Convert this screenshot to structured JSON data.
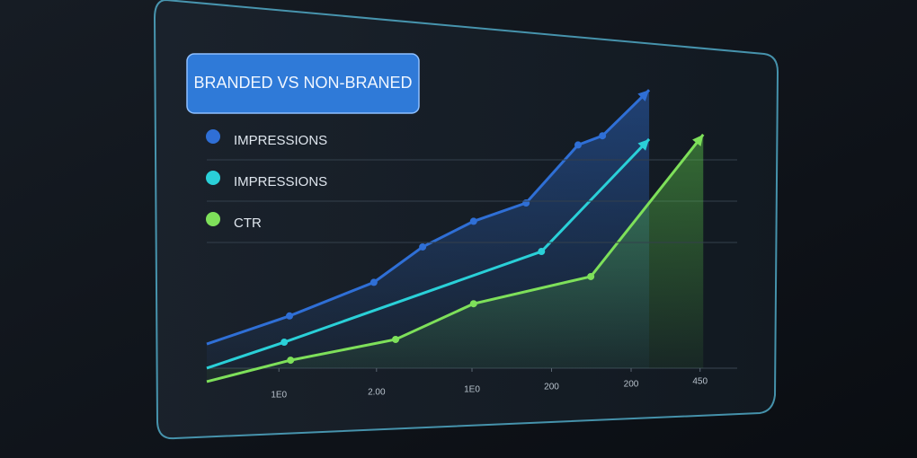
{
  "chart_data": {
    "type": "line",
    "title": "BRANDED VS NON-BRANED",
    "xlim": [
      0,
      100
    ],
    "ylim": [
      0,
      100
    ],
    "xticks": [
      {
        "value": 13.6,
        "label": "1E0"
      },
      {
        "value": 32,
        "label": "2.00"
      },
      {
        "value": 50,
        "label": "1E0"
      },
      {
        "value": 65,
        "label": "200"
      },
      {
        "value": 80,
        "label": "200"
      },
      {
        "value": 93,
        "label": "450"
      }
    ],
    "series": [
      {
        "name": "IMPRESSIONS",
        "color": "#2f6fd6",
        "x": [
          0,
          15.6,
          31.5,
          40.7,
          50.3,
          60.2,
          70,
          74.6,
          83.4
        ],
        "values": [
          13.8,
          23,
          34,
          45.6,
          54,
          60,
          79,
          82,
          97
        ]
      },
      {
        "name": "IMPRESSIONS",
        "color": "#2ad0d8",
        "x": [
          0,
          14.6,
          63.1,
          83.4
        ],
        "values": [
          5.9,
          14.4,
          44.1,
          80.9
        ]
      },
      {
        "name": "CTR",
        "color": "#7ee05a",
        "x": [
          0,
          15.8,
          35.6,
          50.3,
          72.4,
          93.6
        ],
        "values": [
          1.5,
          8.5,
          15.3,
          27,
          35.9,
          82.4
        ]
      }
    ]
  }
}
